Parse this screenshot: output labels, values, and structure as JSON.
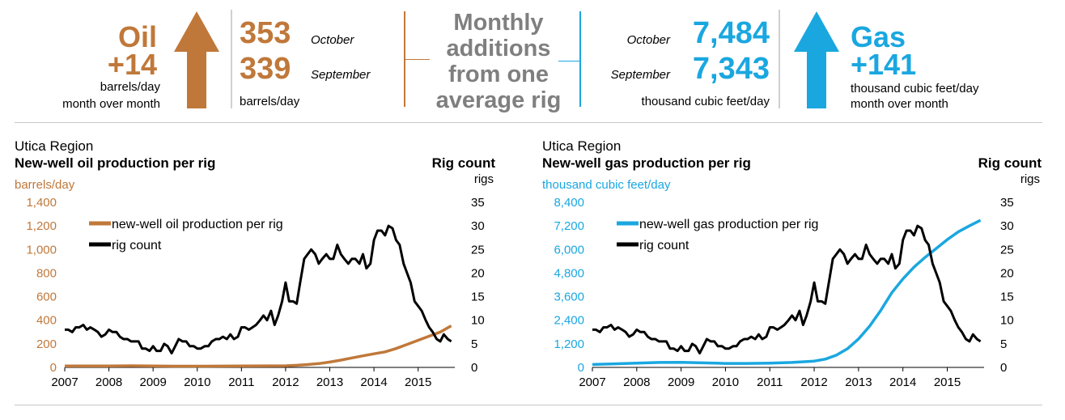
{
  "header": {
    "oil": {
      "name": "Oil",
      "change": "+14",
      "change_unit": "barrels/day",
      "change_period": "month over month",
      "current_value": "353",
      "current_month": "October",
      "previous_value": "339",
      "previous_month": "September",
      "value_unit": "barrels/day",
      "arrow_direction": "up",
      "color": "#c0783a"
    },
    "center_label": [
      "Monthly",
      "additions",
      "from one",
      "average rig"
    ],
    "gas": {
      "name": "Gas",
      "change": "+141",
      "change_unit": "thousand cubic feet/day",
      "change_period": "month over month",
      "current_value": "7,484",
      "current_month": "October",
      "previous_value": "7,343",
      "previous_month": "September",
      "value_unit": "thousand cubic feet/day",
      "arrow_direction": "up",
      "color": "#1aa7e0"
    }
  },
  "chart_data": [
    {
      "type": "line",
      "region": "Utica Region",
      "title": "New-well oil production per rig",
      "ylabel": "barrels/day",
      "y2_title": "Rig count",
      "y2label": "rigs",
      "ylim": [
        0,
        1400
      ],
      "yticks": [
        "0",
        "200",
        "400",
        "600",
        "800",
        "1,000",
        "1,200",
        "1,400"
      ],
      "y2lim": [
        0,
        35
      ],
      "y2ticks": [
        "0",
        "5",
        "10",
        "15",
        "20",
        "25",
        "30",
        "35"
      ],
      "xlim": [
        2007,
        2015.83
      ],
      "xticks": [
        "2007",
        "2008",
        "2009",
        "2010",
        "2011",
        "2012",
        "2013",
        "2014",
        "2015"
      ],
      "grid": false,
      "legend_position": "top-left",
      "series": [
        {
          "name": "new-well oil production per rig",
          "color": "#c0783a",
          "axis": "left",
          "x": [
            2007,
            2008,
            2008.5,
            2009,
            2009.5,
            2010,
            2010.5,
            2011,
            2011.5,
            2012,
            2012.25,
            2012.5,
            2012.75,
            2013,
            2013.25,
            2013.5,
            2013.75,
            2014,
            2014.25,
            2014.5,
            2014.75,
            2015,
            2015.25,
            2015.5,
            2015.75
          ],
          "values": [
            12,
            12,
            14,
            12,
            10,
            10,
            11,
            12,
            13,
            14,
            18,
            24,
            32,
            45,
            62,
            80,
            98,
            115,
            132,
            160,
            195,
            230,
            265,
            300,
            353
          ]
        },
        {
          "name": "rig count",
          "color": "#000000",
          "axis": "right",
          "x": [
            2007,
            2007.08,
            2007.17,
            2007.25,
            2007.33,
            2007.42,
            2007.5,
            2007.58,
            2007.67,
            2007.75,
            2007.83,
            2007.92,
            2008,
            2008.08,
            2008.17,
            2008.25,
            2008.33,
            2008.42,
            2008.5,
            2008.58,
            2008.67,
            2008.75,
            2008.83,
            2008.92,
            2009,
            2009.08,
            2009.17,
            2009.25,
            2009.33,
            2009.42,
            2009.5,
            2009.58,
            2009.67,
            2009.75,
            2009.83,
            2009.92,
            2010,
            2010.08,
            2010.17,
            2010.25,
            2010.33,
            2010.42,
            2010.5,
            2010.58,
            2010.67,
            2010.75,
            2010.83,
            2010.92,
            2011,
            2011.08,
            2011.17,
            2011.25,
            2011.33,
            2011.42,
            2011.5,
            2011.58,
            2011.67,
            2011.75,
            2011.83,
            2011.92,
            2012,
            2012.08,
            2012.17,
            2012.25,
            2012.33,
            2012.42,
            2012.5,
            2012.58,
            2012.67,
            2012.75,
            2012.83,
            2012.92,
            2013,
            2013.08,
            2013.17,
            2013.25,
            2013.33,
            2013.42,
            2013.5,
            2013.58,
            2013.67,
            2013.75,
            2013.83,
            2013.92,
            2014,
            2014.08,
            2014.17,
            2014.25,
            2014.33,
            2014.42,
            2014.5,
            2014.58,
            2014.67,
            2014.75,
            2014.83,
            2014.92,
            2015,
            2015.08,
            2015.17,
            2015.25,
            2015.33,
            2015.42,
            2015.5,
            2015.58,
            2015.67,
            2015.75
          ],
          "values": [
            8,
            8,
            7.5,
            8.5,
            8.5,
            9,
            8,
            8.5,
            8,
            7.5,
            6.5,
            7,
            8,
            7.5,
            7.5,
            6.5,
            6,
            6,
            5.5,
            5.5,
            5.5,
            4,
            4,
            3.5,
            4.5,
            3.5,
            3.5,
            5,
            4.5,
            3,
            4.5,
            6,
            5.5,
            5.5,
            4.5,
            4.5,
            4,
            4,
            4.5,
            4.5,
            5.5,
            6,
            6,
            6.5,
            6,
            7,
            6,
            6.5,
            8.5,
            8.5,
            8,
            8.5,
            9,
            10,
            11,
            10,
            12,
            9,
            11,
            14,
            18,
            14,
            14,
            13.5,
            18,
            23,
            24,
            25,
            24,
            22,
            23,
            24,
            23,
            23,
            26,
            24,
            23,
            22,
            23,
            23,
            22,
            24,
            21,
            22,
            27,
            29,
            29,
            28,
            30,
            29.5,
            27,
            26,
            22,
            20,
            18,
            14,
            13,
            12,
            10,
            8.5,
            7.5,
            6,
            5.5,
            7,
            6,
            5.5
          ],
          "_dummy_note_removed": null
        }
      ]
    },
    {
      "type": "line",
      "region": "Utica Region",
      "title": "New-well gas production per rig",
      "ylabel": "thousand cubic feet/day",
      "y2_title": "Rig count",
      "y2label": "rigs",
      "ylim": [
        0,
        8400
      ],
      "yticks": [
        "0",
        "1,200",
        "2,400",
        "3,600",
        "4,800",
        "6,000",
        "7,200",
        "8,400"
      ],
      "y2lim": [
        0,
        35
      ],
      "y2ticks": [
        "0",
        "5",
        "10",
        "15",
        "20",
        "25",
        "30",
        "35"
      ],
      "xlim": [
        2007,
        2015.83
      ],
      "xticks": [
        "2007",
        "2008",
        "2009",
        "2010",
        "2011",
        "2012",
        "2013",
        "2014",
        "2015"
      ],
      "grid": false,
      "legend_position": "top-left",
      "series": [
        {
          "name": "new-well gas production per rig",
          "color": "#1aa7e0",
          "axis": "left",
          "x": [
            2007,
            2007.5,
            2008,
            2008.5,
            2009,
            2009.5,
            2010,
            2010.5,
            2011,
            2011.5,
            2012,
            2012.25,
            2012.5,
            2012.75,
            2013,
            2013.25,
            2013.5,
            2013.75,
            2014,
            2014.25,
            2014.5,
            2014.75,
            2015,
            2015.25,
            2015.5,
            2015.75
          ],
          "values": [
            150,
            180,
            220,
            250,
            260,
            230,
            200,
            200,
            220,
            250,
            320,
            420,
            620,
            950,
            1450,
            2100,
            2900,
            3800,
            4500,
            5100,
            5600,
            6050,
            6500,
            6900,
            7200,
            7484
          ]
        },
        {
          "name": "rig count",
          "color": "#000000",
          "axis": "right",
          "x": [
            2007,
            2007.08,
            2007.17,
            2007.25,
            2007.33,
            2007.42,
            2007.5,
            2007.58,
            2007.67,
            2007.75,
            2007.83,
            2007.92,
            2008,
            2008.08,
            2008.17,
            2008.25,
            2008.33,
            2008.42,
            2008.5,
            2008.58,
            2008.67,
            2008.75,
            2008.83,
            2008.92,
            2009,
            2009.08,
            2009.17,
            2009.25,
            2009.33,
            2009.42,
            2009.5,
            2009.58,
            2009.67,
            2009.75,
            2009.83,
            2009.92,
            2010,
            2010.08,
            2010.17,
            2010.25,
            2010.33,
            2010.42,
            2010.5,
            2010.58,
            2010.67,
            2010.75,
            2010.83,
            2010.92,
            2011,
            2011.08,
            2011.17,
            2011.25,
            2011.33,
            2011.42,
            2011.5,
            2011.58,
            2011.67,
            2011.75,
            2011.83,
            2011.92,
            2012,
            2012.08,
            2012.17,
            2012.25,
            2012.33,
            2012.42,
            2012.5,
            2012.58,
            2012.67,
            2012.75,
            2012.83,
            2012.92,
            2013,
            2013.08,
            2013.17,
            2013.25,
            2013.33,
            2013.42,
            2013.5,
            2013.58,
            2013.67,
            2013.75,
            2013.83,
            2013.92,
            2014,
            2014.08,
            2014.17,
            2014.25,
            2014.33,
            2014.42,
            2014.5,
            2014.58,
            2014.67,
            2014.75,
            2014.83,
            2014.92,
            2015,
            2015.08,
            2015.17,
            2015.25,
            2015.33,
            2015.42,
            2015.5,
            2015.58,
            2015.67,
            2015.75
          ],
          "values": [
            8,
            8,
            7.5,
            8.5,
            8.5,
            9,
            8,
            8.5,
            8,
            7.5,
            6.5,
            7,
            8,
            7.5,
            7.5,
            6.5,
            6,
            6,
            5.5,
            5.5,
            5.5,
            4,
            4,
            3.5,
            4.5,
            3.5,
            3.5,
            5,
            4.5,
            3,
            4.5,
            6,
            5.5,
            5.5,
            4.5,
            4.5,
            4,
            4,
            4.5,
            4.5,
            5.5,
            6,
            6,
            6.5,
            6,
            7,
            6,
            6.5,
            8.5,
            8.5,
            8,
            8.5,
            9,
            10,
            11,
            10,
            12,
            9,
            11,
            14,
            18,
            14,
            14,
            13.5,
            18,
            23,
            24,
            25,
            24,
            22,
            23,
            24,
            23,
            23,
            26,
            24,
            23,
            22,
            23,
            23,
            22,
            24,
            21,
            22,
            27,
            29,
            29,
            28,
            30,
            29.5,
            27,
            26,
            22,
            20,
            18,
            14,
            13,
            12,
            10,
            8.5,
            7.5,
            6,
            5.5,
            7,
            6,
            5.5
          ]
        }
      ]
    }
  ]
}
